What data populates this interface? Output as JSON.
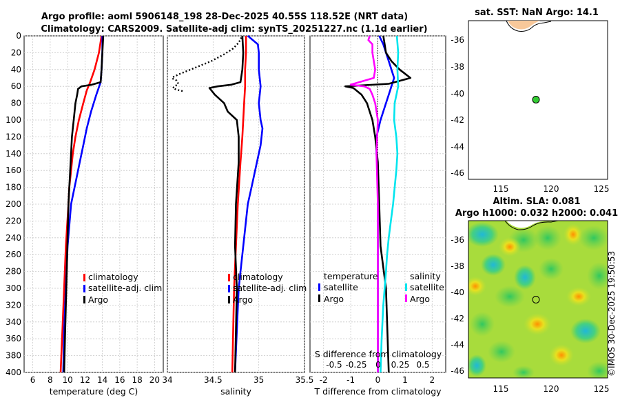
{
  "header": {
    "line1": "Argo profile: aoml 5906148_198 28-Dec-2025 40.55S 118.52E (NRT data)",
    "line2": "Climatology: CARS2009. Satellite-adj clim: synTS_20251227.nc (1.1d earlier)"
  },
  "colors": {
    "clim": "#ff0000",
    "sat": "#0000ff",
    "argo": "#000000",
    "sat_s": "#00e5ee",
    "argo_s": "#ff00ff"
  },
  "chart_data": [
    {
      "id": "temperature",
      "type": "line",
      "xlabel": "temperature (deg C)",
      "xlim": [
        5,
        21
      ],
      "xticks": [
        6,
        8,
        10,
        12,
        14,
        16,
        18,
        20
      ],
      "ylim": [
        0,
        400
      ],
      "yticks": [
        0,
        20,
        40,
        60,
        80,
        100,
        120,
        140,
        160,
        180,
        200,
        220,
        240,
        260,
        280,
        300,
        320,
        340,
        360,
        380,
        400
      ],
      "legend": [
        "climatology",
        "satellite-adj. clim",
        "Argo"
      ],
      "series": [
        {
          "name": "climatology",
          "depth": [
            0,
            20,
            40,
            55,
            65,
            80,
            100,
            120,
            140,
            160,
            180,
            200,
            250,
            300,
            350,
            400
          ],
          "values": [
            13.9,
            13.6,
            13.1,
            12.6,
            12.2,
            11.8,
            11.3,
            10.9,
            10.6,
            10.4,
            10.2,
            10.1,
            9.8,
            9.6,
            9.4,
            9.2
          ]
        },
        {
          "name": "satellite-adj. clim",
          "depth": [
            0,
            20,
            40,
            55,
            70,
            90,
            110,
            130,
            150,
            170,
            190,
            200,
            250,
            300,
            350,
            400
          ],
          "values": [
            14.0,
            14.0,
            13.9,
            13.8,
            13.3,
            12.7,
            12.2,
            11.8,
            11.4,
            11.0,
            10.6,
            10.4,
            10.0,
            9.8,
            9.6,
            9.5
          ]
        },
        {
          "name": "Argo",
          "depth": [
            0,
            20,
            40,
            55,
            58,
            60,
            63,
            70,
            80,
            100,
            120,
            140,
            160,
            180,
            200,
            240,
            280,
            320,
            360,
            400
          ],
          "values": [
            14.1,
            14.0,
            13.9,
            13.8,
            12.8,
            11.6,
            11.2,
            11.1,
            10.9,
            10.7,
            10.5,
            10.4,
            10.3,
            10.2,
            10.1,
            10.0,
            9.9,
            9.8,
            9.7,
            9.6
          ]
        }
      ]
    },
    {
      "id": "salinity",
      "type": "line",
      "xlabel": "salinity",
      "xlim": [
        34.0,
        35.5
      ],
      "xticks": [
        34,
        34.5,
        35,
        35.5
      ],
      "xticklabels": [
        "34",
        "34.5",
        "35",
        "35.5"
      ],
      "ylim": [
        0,
        400
      ],
      "legend": [
        "climatology",
        "satellite-adj. clim",
        "Argo"
      ],
      "series": [
        {
          "name": "climatology",
          "depth": [
            0,
            20,
            40,
            60,
            80,
            100,
            120,
            150,
            200,
            250,
            300,
            350,
            400
          ],
          "values": [
            34.86,
            34.86,
            34.85,
            34.85,
            34.84,
            34.83,
            34.82,
            34.8,
            34.77,
            34.75,
            34.73,
            34.72,
            34.71
          ]
        },
        {
          "name": "satellite-adj. clim",
          "depth": [
            0,
            10,
            20,
            40,
            60,
            80,
            100,
            110,
            130,
            150,
            180,
            200,
            250,
            300,
            350,
            400
          ],
          "values": [
            34.88,
            34.99,
            35.0,
            35.0,
            35.02,
            35.0,
            35.02,
            35.04,
            35.02,
            34.98,
            34.92,
            34.88,
            34.83,
            34.78,
            34.76,
            34.74
          ]
        },
        {
          "name": "Argo",
          "depth": [
            0,
            20,
            40,
            55,
            58,
            60,
            62,
            70,
            80,
            90,
            100,
            120,
            150,
            200,
            250,
            300,
            350,
            400
          ],
          "values": [
            34.82,
            34.83,
            34.82,
            34.8,
            34.7,
            34.55,
            34.46,
            34.52,
            34.62,
            34.66,
            34.76,
            34.78,
            34.78,
            34.75,
            34.74,
            34.76,
            34.75,
            34.74
          ]
        },
        {
          "name": "Argo (dotted)",
          "depth": [
            2,
            8,
            15,
            22,
            30,
            38,
            45,
            49,
            50,
            51,
            53,
            57,
            60,
            62,
            64,
            66
          ],
          "values": [
            34.81,
            34.78,
            34.72,
            34.62,
            34.48,
            34.3,
            34.14,
            34.06,
            34.05,
            34.06,
            34.1,
            34.12,
            34.08,
            34.06,
            34.1,
            34.18
          ]
        }
      ]
    },
    {
      "id": "difference",
      "type": "line",
      "xlabel": "T difference from climatology",
      "xlabel2": "S difference from climatology",
      "xlim": [
        -2.5,
        2.5
      ],
      "xticks": [
        -2,
        -1,
        0,
        1,
        2
      ],
      "s_xticklabels": [
        "-0.5",
        "-0.25",
        "0",
        "0.25",
        "0.5"
      ],
      "ylim": [
        0,
        400
      ],
      "legend_left": [
        "temperature",
        "satellite",
        "Argo"
      ],
      "legend_right": [
        "salinity",
        "satellite",
        "Argo"
      ],
      "series": [
        {
          "name": "T satellite",
          "depth": [
            0,
            10,
            20,
            30,
            40,
            50,
            60,
            70,
            80,
            100,
            120,
            140,
            160,
            180,
            200,
            250,
            300,
            350,
            400
          ],
          "values": [
            0.05,
            0.2,
            0.3,
            0.4,
            0.5,
            0.6,
            0.5,
            0.4,
            0.3,
            0.1,
            -0.05,
            -0.05,
            0.0,
            0.0,
            0.0,
            0.0,
            0.0,
            0.0,
            0.0
          ]
        },
        {
          "name": "T Argo",
          "depth": [
            0,
            10,
            20,
            30,
            40,
            50,
            57,
            60,
            62,
            70,
            80,
            100,
            120,
            150,
            200,
            250,
            300,
            350,
            400
          ],
          "values": [
            0.2,
            0.25,
            0.3,
            0.5,
            0.8,
            1.2,
            0.4,
            -1.2,
            -0.9,
            -0.6,
            -0.4,
            -0.2,
            -0.1,
            0.0,
            0.05,
            0.1,
            0.3,
            0.35,
            0.4
          ]
        },
        {
          "name": "S satellite",
          "depth": [
            0,
            20,
            40,
            60,
            80,
            100,
            120,
            140,
            160,
            180,
            200,
            220,
            240,
            260,
            280,
            300,
            320,
            340,
            360,
            380,
            400
          ],
          "values": [
            0.7,
            0.75,
            0.72,
            0.75,
            0.62,
            0.6,
            0.68,
            0.72,
            0.68,
            0.62,
            0.56,
            0.48,
            0.4,
            0.34,
            0.3,
            0.25,
            0.2,
            0.17,
            0.14,
            0.12,
            0.1
          ]
        },
        {
          "name": "S Argo",
          "depth": [
            0,
            5,
            10,
            20,
            40,
            50,
            58,
            60,
            63,
            70,
            80,
            100,
            140,
            200,
            260,
            300,
            350,
            400
          ],
          "values": [
            -0.3,
            -0.35,
            -0.2,
            -0.2,
            -0.1,
            -0.15,
            -1.0,
            -0.5,
            -0.3,
            -0.2,
            -0.1,
            0.0,
            -0.05,
            0.0,
            0.0,
            0.0,
            0.0,
            0.0
          ]
        }
      ]
    }
  ],
  "sst_map": {
    "title": "sat. SST: NaN Argo: 14.1",
    "xticks": [
      "115",
      "120",
      "125"
    ],
    "yticks": [
      "-36",
      "-38",
      "-40",
      "-42",
      "-44",
      "-46"
    ],
    "argo_lon": 118.52,
    "argo_lat": -40.55
  },
  "sla_map": {
    "title1": "Altim. SLA: 0.081",
    "title2": "Argo h1000: 0.032 h2000: 0.041",
    "xticks": [
      "115",
      "120",
      "125"
    ],
    "yticks": [
      "-36",
      "-38",
      "-40",
      "-42",
      "-44",
      "-46"
    ]
  },
  "watermark": "©IMOS 30-Dec-2025 19:50:53"
}
